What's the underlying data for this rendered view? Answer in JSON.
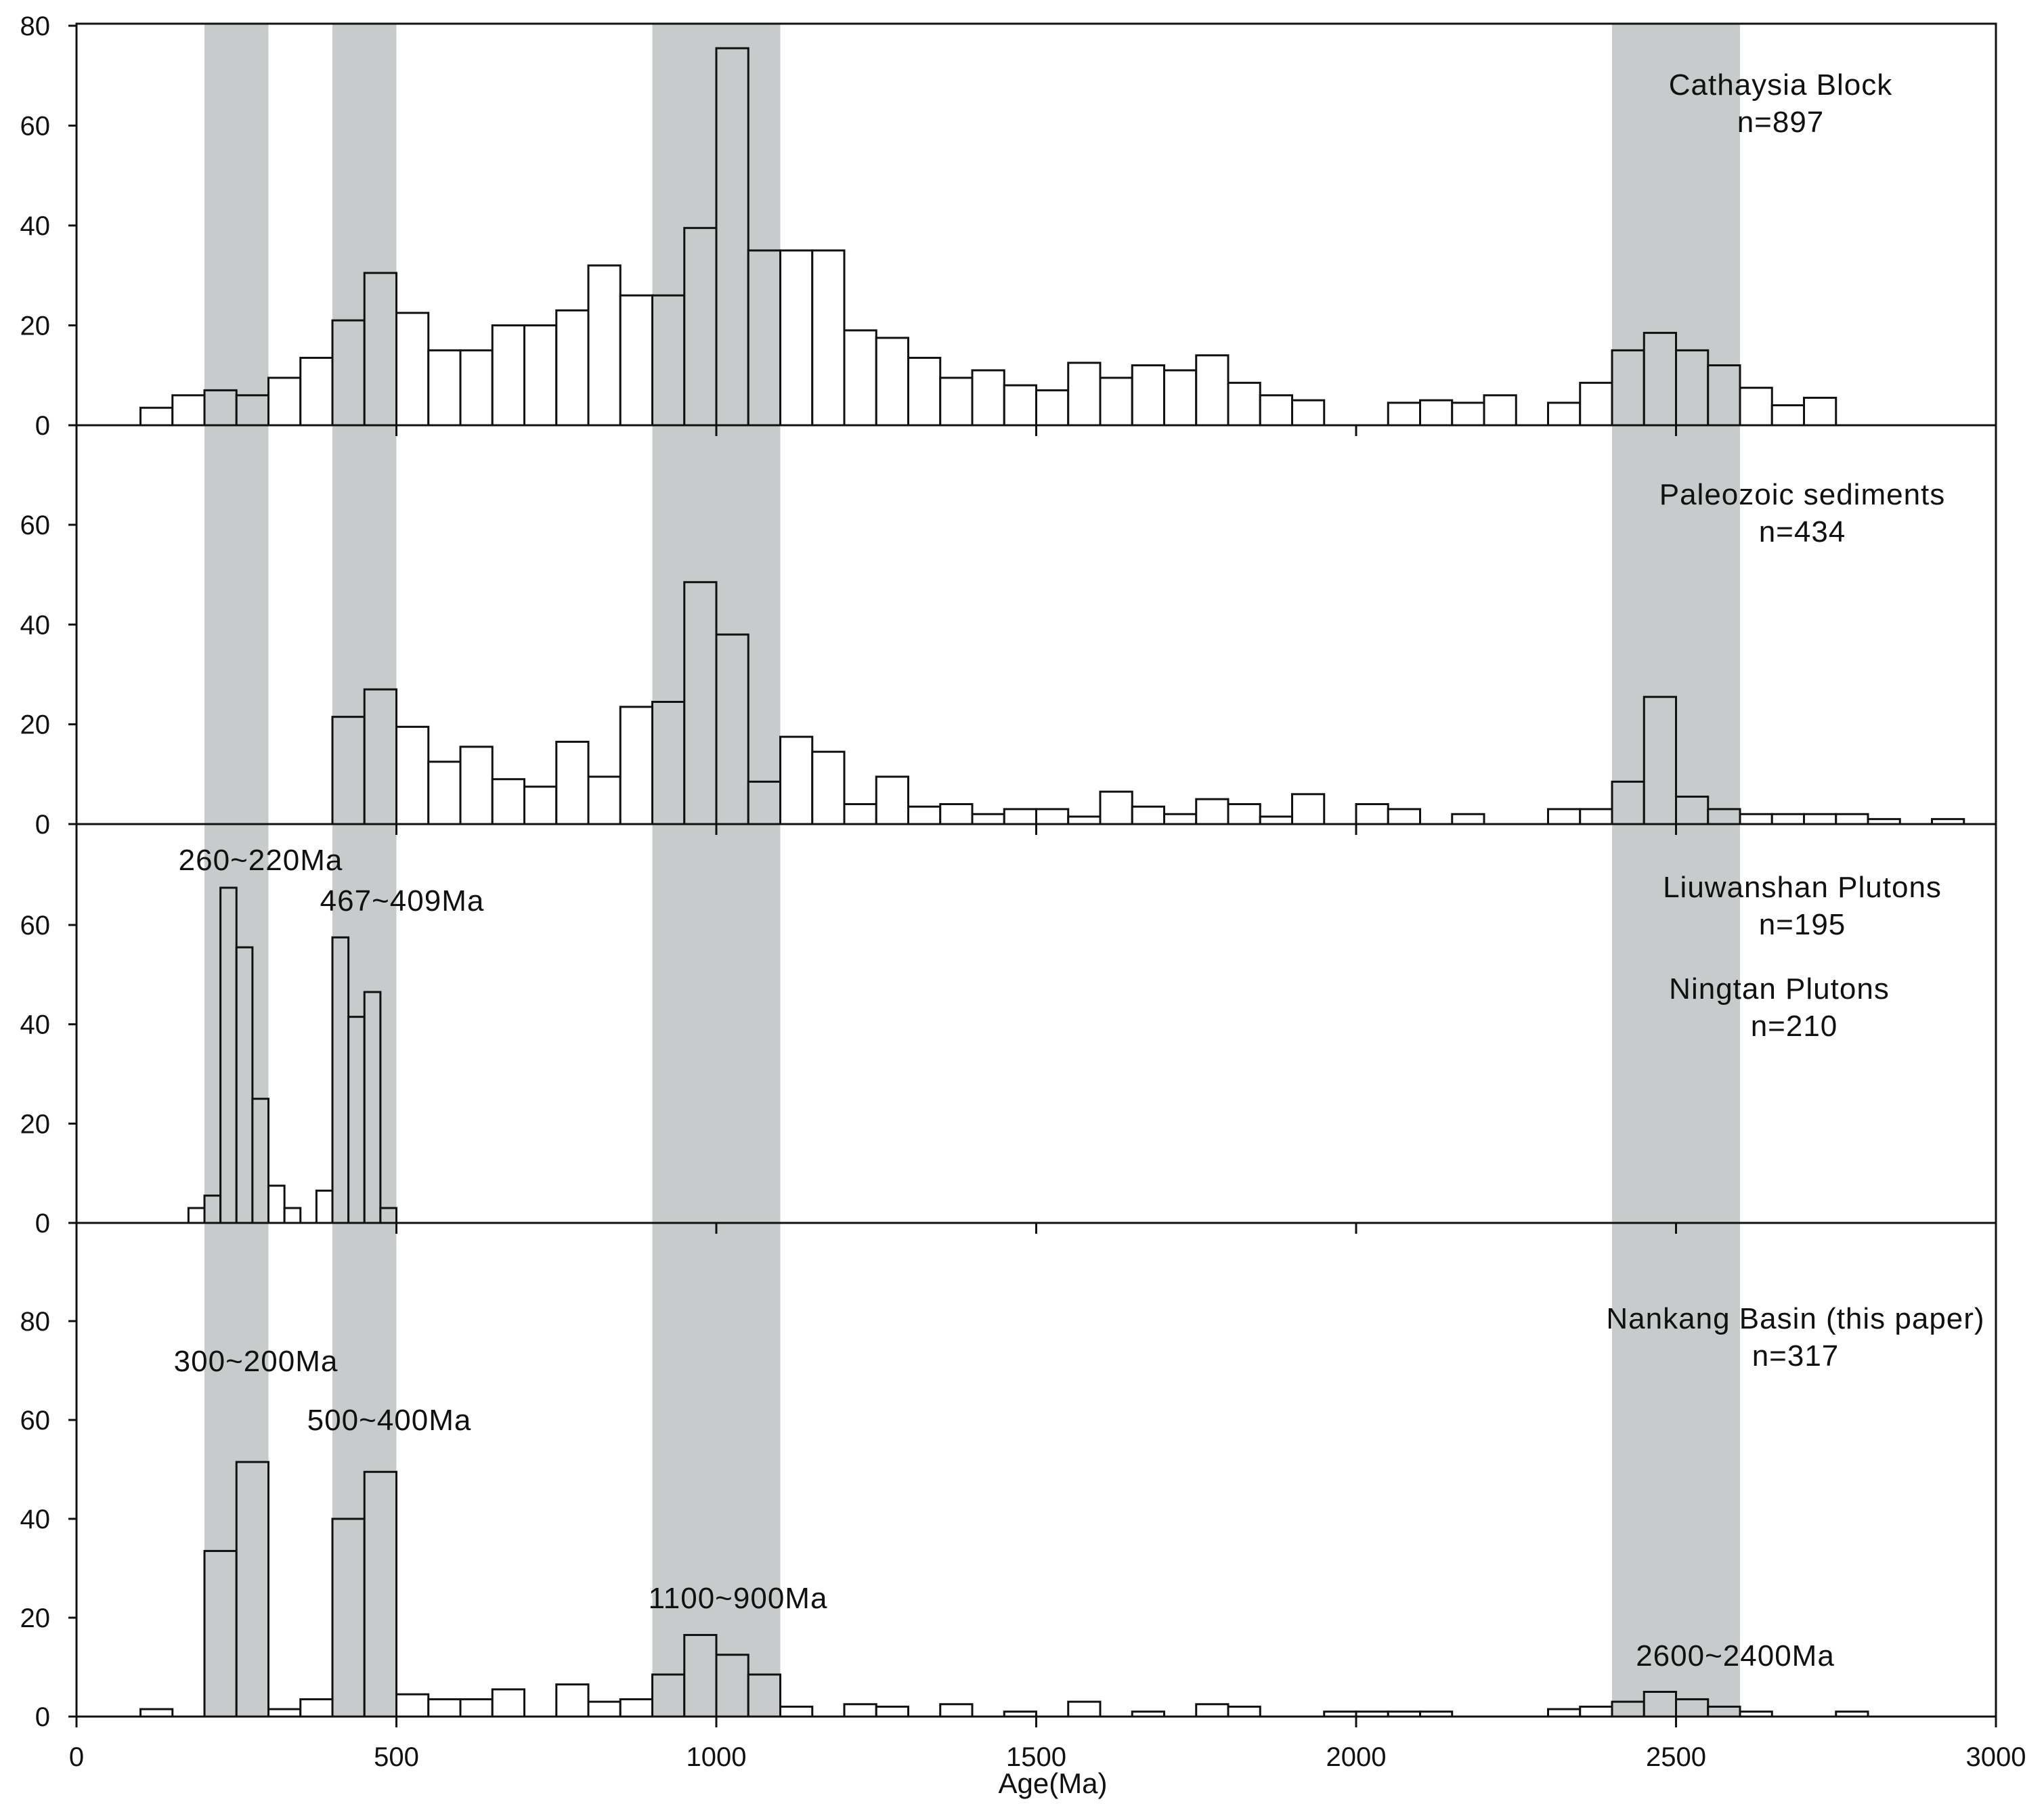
{
  "chart_data": {
    "type": "bar",
    "xlabel": "Age(Ma)",
    "xlim": [
      0,
      3000
    ],
    "x_ticks": [
      0,
      500,
      1000,
      1500,
      2000,
      2500,
      3000
    ],
    "bin_width": 50,
    "highlight_bands": [
      [
        200,
        300
      ],
      [
        400,
        500
      ],
      [
        900,
        1100
      ],
      [
        2400,
        2600
      ]
    ],
    "colors": {
      "band": "#c8cbcb",
      "bar_fill": "#ffffff",
      "bar_stroke": "#111111",
      "axis": "#111111"
    },
    "panels": [
      {
        "name": "cathaysia",
        "label_lines": [
          "Cathaysia Block",
          "n=897"
        ],
        "ylim": [
          0,
          80
        ],
        "y_ticks": [
          0,
          20,
          40,
          60,
          80
        ],
        "annotations": [],
        "bars": [
          [
            100,
            3.5
          ],
          [
            150,
            6
          ],
          [
            200,
            7
          ],
          [
            250,
            6
          ],
          [
            300,
            9.5
          ],
          [
            350,
            13.5
          ],
          [
            400,
            21
          ],
          [
            450,
            30.5
          ],
          [
            500,
            22.5
          ],
          [
            550,
            15
          ],
          [
            600,
            15
          ],
          [
            650,
            20
          ],
          [
            700,
            20
          ],
          [
            750,
            23
          ],
          [
            800,
            32
          ],
          [
            850,
            26
          ],
          [
            900,
            26
          ],
          [
            950,
            39.5
          ],
          [
            1000,
            75.5
          ],
          [
            1050,
            35
          ],
          [
            1100,
            35
          ],
          [
            1150,
            35
          ],
          [
            1200,
            19
          ],
          [
            1250,
            17.5
          ],
          [
            1300,
            13.5
          ],
          [
            1350,
            9.5
          ],
          [
            1400,
            11
          ],
          [
            1450,
            8
          ],
          [
            1500,
            7
          ],
          [
            1550,
            12.5
          ],
          [
            1600,
            9.5
          ],
          [
            1650,
            12
          ],
          [
            1700,
            11
          ],
          [
            1750,
            14
          ],
          [
            1800,
            8.5
          ],
          [
            1850,
            6
          ],
          [
            1900,
            5
          ],
          [
            2050,
            4.5
          ],
          [
            2100,
            5
          ],
          [
            2150,
            4.5
          ],
          [
            2200,
            6
          ],
          [
            2300,
            4.5
          ],
          [
            2350,
            8.5
          ],
          [
            2400,
            15
          ],
          [
            2450,
            18.5
          ],
          [
            2500,
            15
          ],
          [
            2550,
            12
          ],
          [
            2600,
            7.5
          ],
          [
            2650,
            4
          ],
          [
            2700,
            5.5
          ]
        ]
      },
      {
        "name": "paleozoic",
        "label_lines": [
          "Paleozoic sediments",
          "n=434"
        ],
        "ylim": [
          0,
          80
        ],
        "y_ticks": [
          0,
          20,
          40,
          60
        ],
        "annotations": [],
        "bars": [
          [
            400,
            21.5
          ],
          [
            450,
            27
          ],
          [
            500,
            19.5
          ],
          [
            550,
            12.5
          ],
          [
            600,
            15.5
          ],
          [
            650,
            9
          ],
          [
            700,
            7.5
          ],
          [
            750,
            16.5
          ],
          [
            800,
            9.5
          ],
          [
            850,
            23.5
          ],
          [
            900,
            24.5
          ],
          [
            950,
            48.5
          ],
          [
            1000,
            38
          ],
          [
            1050,
            8.5
          ],
          [
            1100,
            17.5
          ],
          [
            1150,
            14.5
          ],
          [
            1200,
            4
          ],
          [
            1250,
            9.5
          ],
          [
            1300,
            3.5
          ],
          [
            1350,
            4
          ],
          [
            1400,
            2
          ],
          [
            1450,
            3
          ],
          [
            1500,
            3
          ],
          [
            1550,
            1.5
          ],
          [
            1600,
            6.5
          ],
          [
            1650,
            3.5
          ],
          [
            1700,
            2
          ],
          [
            1750,
            5
          ],
          [
            1800,
            4
          ],
          [
            1850,
            1.5
          ],
          [
            1900,
            6
          ],
          [
            2000,
            4
          ],
          [
            2050,
            3
          ],
          [
            2150,
            2
          ],
          [
            2300,
            3
          ],
          [
            2350,
            3
          ],
          [
            2400,
            8.5
          ],
          [
            2450,
            25.5
          ],
          [
            2500,
            5.5
          ],
          [
            2550,
            3
          ],
          [
            2600,
            2
          ],
          [
            2650,
            2
          ],
          [
            2700,
            2
          ],
          [
            2750,
            2
          ],
          [
            2800,
            1
          ],
          [
            2900,
            1
          ]
        ]
      },
      {
        "name": "plutons",
        "label_lines": [
          "Liuwanshan Plutons",
          "n=195",
          "Ningtan Plutons",
          "n=210"
        ],
        "ylim": [
          0,
          80
        ],
        "y_ticks": [
          0,
          20,
          40,
          60
        ],
        "annotations": [
          "260~220Ma",
          "467~409Ma"
        ],
        "bars": [
          [
            175,
            3
          ],
          [
            200,
            5.5
          ],
          [
            225,
            67.5
          ],
          [
            250,
            55.5
          ],
          [
            275,
            25
          ],
          [
            300,
            7.5
          ],
          [
            325,
            3
          ],
          [
            375,
            6.5
          ],
          [
            400,
            57.5
          ],
          [
            425,
            41.5
          ],
          [
            450,
            46.5
          ],
          [
            475,
            3
          ]
        ]
      },
      {
        "name": "nankang",
        "label_lines": [
          "Nankang Basin (this paper)",
          "n=317"
        ],
        "ylim": [
          0,
          100
        ],
        "y_ticks": [
          0,
          20,
          40,
          60,
          80
        ],
        "annotations": [
          "300~200Ma",
          "500~400Ma",
          "1100~900Ma",
          "2600~2400Ma"
        ],
        "bars": [
          [
            100,
            1.5
          ],
          [
            200,
            33.5
          ],
          [
            250,
            51.5
          ],
          [
            300,
            1.5
          ],
          [
            350,
            3.5
          ],
          [
            400,
            40
          ],
          [
            450,
            49.5
          ],
          [
            500,
            4.5
          ],
          [
            550,
            3.5
          ],
          [
            600,
            3.5
          ],
          [
            650,
            5.5
          ],
          [
            750,
            6.5
          ],
          [
            800,
            3
          ],
          [
            850,
            3.5
          ],
          [
            900,
            8.5
          ],
          [
            950,
            16.5
          ],
          [
            1000,
            12.5
          ],
          [
            1050,
            8.5
          ],
          [
            1100,
            2
          ],
          [
            1200,
            2.5
          ],
          [
            1250,
            2
          ],
          [
            1350,
            2.5
          ],
          [
            1450,
            1
          ],
          [
            1550,
            3
          ],
          [
            1650,
            1
          ],
          [
            1750,
            2.5
          ],
          [
            1800,
            2
          ],
          [
            1950,
            1
          ],
          [
            2000,
            1
          ],
          [
            2050,
            1
          ],
          [
            2100,
            1
          ],
          [
            2300,
            1.5
          ],
          [
            2350,
            2
          ],
          [
            2400,
            3
          ],
          [
            2450,
            5
          ],
          [
            2500,
            3.5
          ],
          [
            2550,
            2
          ],
          [
            2600,
            1
          ],
          [
            2750,
            1
          ]
        ]
      }
    ]
  }
}
